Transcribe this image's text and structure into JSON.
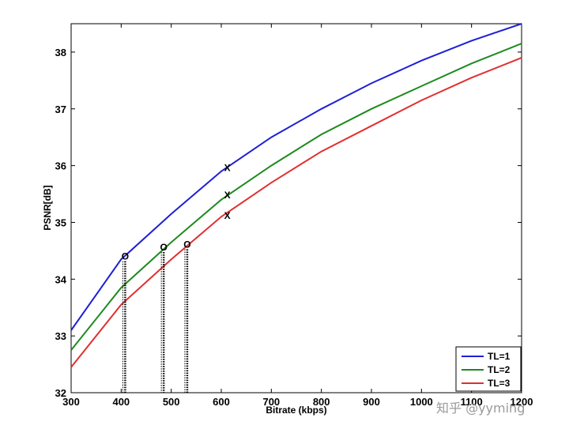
{
  "chart_data": {
    "type": "line",
    "title": "",
    "xlabel": "Bitrate (kbps)",
    "ylabel": "PSNR[dB]",
    "xlim": [
      300,
      1200
    ],
    "ylim": [
      32,
      38.5
    ],
    "xticks": [
      300,
      400,
      500,
      600,
      700,
      800,
      900,
      1000,
      1100,
      1200
    ],
    "yticks": [
      32,
      33,
      34,
      35,
      36,
      37,
      38
    ],
    "grid": false,
    "legend_position": "bottom-right",
    "series": [
      {
        "name": "TL=1",
        "color": "#1f1fd6",
        "x": [
          300,
          400,
          500,
          600,
          700,
          800,
          900,
          1000,
          1100,
          1200
        ],
        "y": [
          33.1,
          34.35,
          35.15,
          35.9,
          36.5,
          37.0,
          37.45,
          37.85,
          38.2,
          38.5
        ]
      },
      {
        "name": "TL=2",
        "color": "#1e8a1e",
        "x": [
          300,
          400,
          500,
          600,
          700,
          800,
          900,
          1000,
          1100,
          1200
        ],
        "y": [
          32.75,
          33.85,
          34.65,
          35.4,
          36.0,
          36.55,
          37.0,
          37.4,
          37.8,
          38.15
        ]
      },
      {
        "name": "TL=3",
        "color": "#e03030",
        "x": [
          300,
          400,
          500,
          600,
          700,
          800,
          900,
          1000,
          1100,
          1200
        ],
        "y": [
          32.45,
          33.55,
          34.35,
          35.1,
          35.7,
          36.25,
          36.7,
          37.15,
          37.55,
          37.9
        ]
      }
    ],
    "annotations": [
      {
        "label": "O",
        "x": 408,
        "y": 34.4,
        "dotted_drop": true
      },
      {
        "label": "O",
        "x": 485,
        "y": 34.56,
        "dotted_drop": true
      },
      {
        "label": "O",
        "x": 532,
        "y": 34.61,
        "dotted_drop": true
      },
      {
        "label": "X",
        "x": 612,
        "y": 35.96,
        "dotted_drop": false
      },
      {
        "label": "X",
        "x": 612,
        "y": 35.48,
        "dotted_drop": false
      },
      {
        "label": "X",
        "x": 612,
        "y": 35.12,
        "dotted_drop": false
      }
    ]
  },
  "watermark": "知乎 @yyming"
}
